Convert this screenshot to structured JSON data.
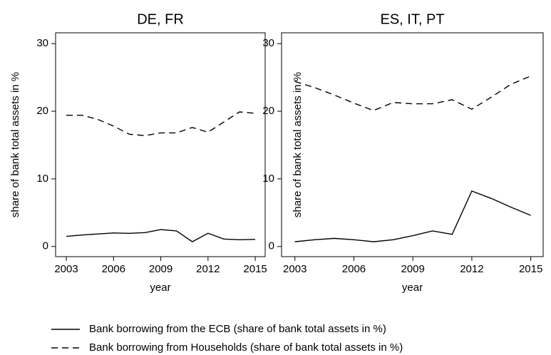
{
  "chart_data": [
    {
      "type": "line",
      "title": "DE, FR",
      "xlabel": "year",
      "ylabel": "share of bank total assets in %",
      "x": [
        2003,
        2004,
        2005,
        2006,
        2007,
        2008,
        2009,
        2010,
        2011,
        2012,
        2013,
        2014,
        2015
      ],
      "series": [
        {
          "name": "Bank borrowing from the ECB (share of bank total assets in %)",
          "color": "#000000",
          "dash": "solid",
          "values": [
            1.5,
            1.7,
            1.85,
            2.0,
            1.95,
            2.05,
            2.5,
            2.3,
            0.7,
            1.95,
            1.1,
            1.0,
            1.05
          ]
        },
        {
          "name": "Bank borrowing from Households (share of bank total assets in %)",
          "color": "#000000",
          "dash": "dashed",
          "values": [
            19.4,
            19.4,
            18.8,
            17.8,
            16.6,
            16.4,
            16.8,
            16.8,
            17.6,
            16.9,
            18.4,
            19.9,
            19.7
          ]
        }
      ],
      "xlim": [
        2002.32,
        2015.63
      ],
      "xticks": [
        2003,
        2006,
        2009,
        2012,
        2015
      ],
      "ylim": [
        -1.5,
        31.6
      ],
      "yticks": [
        0,
        10,
        20,
        30
      ],
      "grid": false,
      "legend": "bottom"
    },
    {
      "type": "line",
      "title": "ES, IT, PT",
      "xlabel": "year",
      "ylabel": "share of bank total assets in %",
      "x": [
        2003,
        2004,
        2005,
        2006,
        2007,
        2008,
        2009,
        2010,
        2011,
        2012,
        2013,
        2014,
        2015
      ],
      "series": [
        {
          "color": "#000000",
          "dash": "solid",
          "values": [
            0.7,
            1.0,
            1.2,
            1.0,
            0.7,
            1.0,
            1.6,
            2.3,
            1.8,
            8.2,
            7.1,
            5.8,
            4.6
          ]
        },
        {
          "color": "#000000",
          "dash": "dashed",
          "values": [
            24.4,
            23.5,
            22.4,
            21.2,
            20.1,
            21.3,
            21.1,
            21.1,
            21.7,
            20.3,
            22.1,
            24.0,
            25.2
          ]
        }
      ],
      "xlim": [
        2002.32,
        2015.63
      ],
      "xticks": [
        2003,
        2006,
        2009,
        2012,
        2015
      ],
      "ylim": [
        -1.5,
        31.6
      ],
      "yticks": [
        0,
        10,
        20,
        30
      ],
      "grid": false
    }
  ]
}
